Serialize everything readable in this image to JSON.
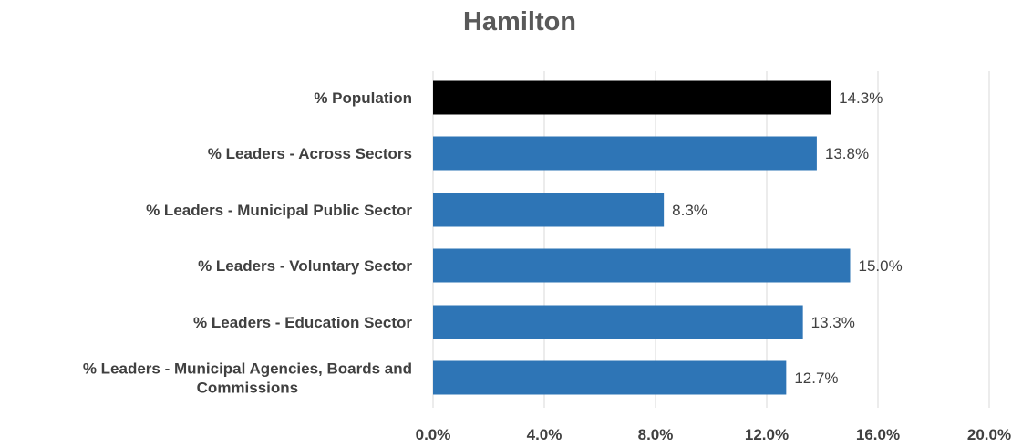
{
  "chart_data": {
    "type": "bar",
    "orientation": "horizontal",
    "title": "Hamilton",
    "categories": [
      "% Population",
      "% Leaders - Across Sectors",
      "% Leaders - Municipal Public Sector",
      "% Leaders - Voluntary Sector",
      "% Leaders - Education Sector",
      "% Leaders - Municipal Agencies, Boards and Commissions"
    ],
    "category_label_lines": [
      [
        "% Population"
      ],
      [
        "% Leaders - Across Sectors"
      ],
      [
        "% Leaders - Municipal Public Sector"
      ],
      [
        "% Leaders - Voluntary Sector"
      ],
      [
        "% Leaders - Education Sector"
      ],
      [
        "% Leaders - Municipal Agencies, Boards and",
        "Commissions"
      ]
    ],
    "values": [
      14.3,
      13.8,
      8.3,
      15.0,
      13.3,
      12.7
    ],
    "value_labels": [
      "14.3%",
      "13.8%",
      "8.3%",
      "15.0%",
      "13.3%",
      "12.7%"
    ],
    "bar_colors": [
      "#000000",
      "#2e75b6",
      "#2e75b6",
      "#2e75b6",
      "#2e75b6",
      "#2e75b6"
    ],
    "xlim": [
      0,
      20
    ],
    "xticks": [
      0,
      4,
      8,
      12,
      16,
      20
    ],
    "xtick_labels": [
      "0.0%",
      "4.0%",
      "8.0%",
      "12.0%",
      "16.0%",
      "20.0%"
    ],
    "xlabel": "",
    "ylabel": "",
    "grid": "vertical",
    "legend": "none"
  }
}
